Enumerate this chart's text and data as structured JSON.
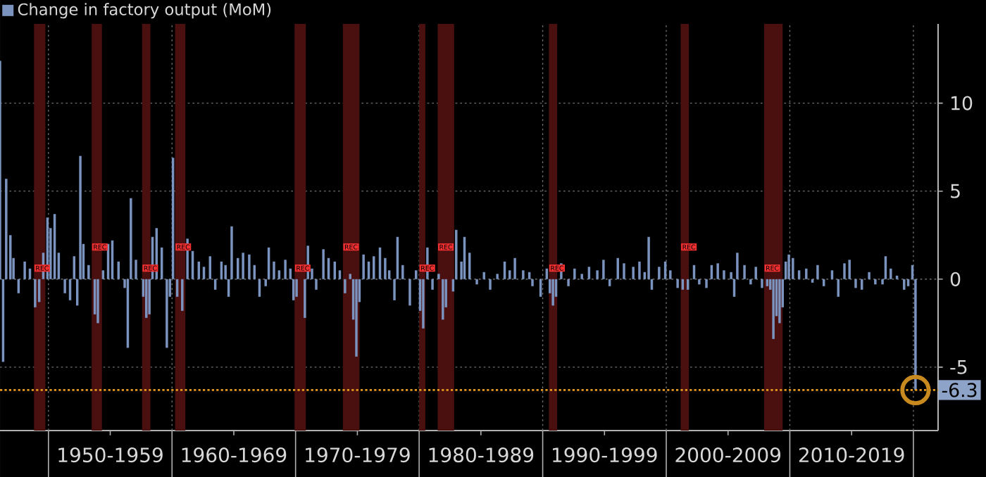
{
  "chart_data": {
    "type": "bar",
    "xlim": [
      "1946-02",
      "2022-01"
    ],
    "ylim": [
      -8.6,
      14.5
    ],
    "xticks": [
      {
        "value": "1950-01",
        "label": null
      },
      {
        "value": "1955-01",
        "label": "1950-1959"
      },
      {
        "value": "1960-01",
        "label": null
      },
      {
        "value": "1965-01",
        "label": "1960-1969"
      },
      {
        "value": "1970-01",
        "label": null
      },
      {
        "value": "1975-01",
        "label": "1970-1979"
      },
      {
        "value": "1980-01",
        "label": null
      },
      {
        "value": "1985-01",
        "label": "1980-1989"
      },
      {
        "value": "1990-01",
        "label": null
      },
      {
        "value": "1995-01",
        "label": "1990-1999"
      },
      {
        "value": "2000-01",
        "label": null
      },
      {
        "value": "2005-01",
        "label": "2000-2009"
      },
      {
        "value": "2010-01",
        "label": null
      },
      {
        "value": "2015-01",
        "label": "2010-2019"
      },
      {
        "value": "2020-01",
        "label": null
      }
    ],
    "yticks": [
      -5,
      0,
      5,
      10
    ],
    "grid": true,
    "legend": "top left",
    "series": [
      {
        "type": "scatter",
        "color": "#c8891e",
        "marker": "circle",
        "x": [
          "2020-03"
        ],
        "values": [
          -6.3
        ]
      },
      {
        "name": "Change in factory output (MoM)",
        "color": "#7b93bf",
        "x": [
          "1946-02",
          "1946-05",
          "1946-08",
          "1946-12",
          "1947-03",
          "1947-08",
          "1948-02",
          "1948-07",
          "1948-12",
          "1949-04",
          "1949-08",
          "1949-12",
          "1950-03",
          "1950-07",
          "1950-11",
          "1951-05",
          "1951-10",
          "1952-02",
          "1952-05",
          "1952-08",
          "1952-11",
          "1953-04",
          "1953-10",
          "1954-01",
          "1954-06",
          "1954-11",
          "1955-03",
          "1955-09",
          "1956-03",
          "1956-06",
          "1956-09",
          "1957-02",
          "1957-09",
          "1957-12",
          "1958-03",
          "1958-06",
          "1958-10",
          "1959-03",
          "1959-08",
          "1959-11",
          "1960-02",
          "1960-06",
          "1960-11",
          "1961-04",
          "1961-09",
          "1962-03",
          "1962-08",
          "1963-02",
          "1963-07",
          "1964-01",
          "1964-05",
          "1964-08",
          "1964-11",
          "1965-05",
          "1965-10",
          "1966-04",
          "1966-09",
          "1967-02",
          "1967-08",
          "1967-11",
          "1968-04",
          "1968-09",
          "1969-03",
          "1969-08",
          "1969-11",
          "1970-02",
          "1970-10",
          "1971-01",
          "1971-05",
          "1971-09",
          "1972-04",
          "1972-09",
          "1973-03",
          "1973-08",
          "1974-01",
          "1974-06",
          "1974-09",
          "1974-12",
          "1975-03",
          "1975-07",
          "1975-12",
          "1976-05",
          "1976-11",
          "1977-04",
          "1977-08",
          "1978-01",
          "1978-04",
          "1978-09",
          "1979-04",
          "1979-10",
          "1980-02",
          "1980-05",
          "1980-09",
          "1981-02",
          "1981-08",
          "1981-12",
          "1982-03",
          "1982-10",
          "1983-01",
          "1983-06",
          "1983-09",
          "1984-02",
          "1984-09",
          "1985-04",
          "1985-10",
          "1986-05",
          "1986-12",
          "1987-05",
          "1987-10",
          "1988-06",
          "1988-12",
          "1989-03",
          "1989-11",
          "1990-05",
          "1990-08",
          "1990-11",
          "1991-02",
          "1991-07",
          "1992-02",
          "1992-08",
          "1993-03",
          "1993-10",
          "1994-06",
          "1994-12",
          "1995-06",
          "1996-02",
          "1996-08",
          "1997-05",
          "1997-11",
          "1998-04",
          "1998-08",
          "1998-11",
          "1999-06",
          "1999-12",
          "2000-05",
          "2000-12",
          "2001-05",
          "2001-10",
          "2002-04",
          "2002-09",
          "2003-04",
          "2003-09",
          "2004-03",
          "2004-09",
          "2005-04",
          "2005-07",
          "2005-10",
          "2006-05",
          "2006-11",
          "2007-04",
          "2007-10",
          "2008-03",
          "2008-06",
          "2008-09",
          "2008-12",
          "2009-03",
          "2009-06",
          "2009-09",
          "2009-12",
          "2010-04",
          "2010-10",
          "2011-05",
          "2011-11",
          "2012-04",
          "2012-10",
          "2013-06",
          "2013-12",
          "2014-06",
          "2014-11",
          "2015-05",
          "2015-11",
          "2016-06",
          "2016-12",
          "2017-07",
          "2017-10",
          "2018-03",
          "2018-09",
          "2019-04",
          "2019-08",
          "2019-12",
          "2020-03"
        ],
        "values": [
          12.4,
          -4.7,
          5.7,
          2.5,
          1.2,
          -0.8,
          1.0,
          0.6,
          -1.6,
          -1.3,
          1.5,
          3.5,
          2.9,
          3.7,
          1.5,
          -0.8,
          -1.2,
          1.3,
          -1.5,
          7.0,
          2.0,
          0.8,
          -2.0,
          -2.5,
          0.5,
          2.0,
          2.2,
          1.0,
          -0.5,
          -3.9,
          4.6,
          1.1,
          -1.0,
          -2.2,
          -2.0,
          2.4,
          2.9,
          1.8,
          -3.9,
          -1.0,
          6.9,
          -1.0,
          -1.8,
          2.3,
          1.6,
          1.0,
          0.7,
          1.3,
          -0.6,
          1.0,
          0.8,
          -1.0,
          3.0,
          1.2,
          1.5,
          1.4,
          0.8,
          -1.0,
          -0.4,
          1.8,
          1.0,
          0.5,
          1.1,
          0.6,
          -1.2,
          -1.0,
          -2.2,
          1.9,
          0.6,
          -0.6,
          1.7,
          1.2,
          1.0,
          0.5,
          -0.8,
          0.3,
          -2.3,
          -4.4,
          -1.3,
          1.4,
          1.0,
          1.3,
          1.8,
          1.2,
          0.5,
          -1.2,
          2.4,
          0.8,
          -1.5,
          0.5,
          -1.8,
          -2.8,
          1.8,
          -0.6,
          0.3,
          -2.3,
          -1.6,
          -0.7,
          2.8,
          1.0,
          2.4,
          1.5,
          -0.3,
          0.4,
          -0.6,
          0.3,
          1.0,
          0.5,
          1.2,
          0.5,
          0.4,
          -0.4,
          -1.0,
          0.6,
          -0.8,
          -1.5,
          -1.0,
          0.9,
          -0.4,
          0.6,
          0.3,
          0.7,
          0.5,
          1.1,
          -0.4,
          1.2,
          0.9,
          0.7,
          1.0,
          0.4,
          2.4,
          -0.6,
          0.7,
          1.0,
          0.5,
          -0.5,
          -0.6,
          -0.6,
          0.8,
          -0.3,
          -0.5,
          0.8,
          0.9,
          0.5,
          0.4,
          -1.0,
          1.5,
          0.8,
          -0.3,
          0.7,
          -0.5,
          -0.4,
          -0.6,
          -3.4,
          -2.1,
          -2.5,
          -1.6,
          1.0,
          1.4,
          1.2,
          0.5,
          0.6,
          -0.2,
          0.8,
          -0.4,
          0.5,
          -1.0,
          0.9,
          1.1,
          -0.5,
          -0.6,
          0.4,
          -0.3,
          -0.3,
          1.3,
          0.6,
          0.2,
          -0.6,
          -0.4,
          0.8,
          -6.3
        ]
      }
    ],
    "bands": [
      {
        "axis": "x",
        "from": "1948-11",
        "to": "1949-10",
        "label": "REC",
        "color": "#4a1010"
      },
      {
        "axis": "x",
        "from": "1953-07",
        "to": "1954-05",
        "label": "REC",
        "color": "#4a1010"
      },
      {
        "axis": "x",
        "from": "1957-08",
        "to": "1958-04",
        "label": "REC",
        "color": "#4a1010"
      },
      {
        "axis": "x",
        "from": "1960-04",
        "to": "1961-02",
        "label": "REC",
        "color": "#4a1010"
      },
      {
        "axis": "x",
        "from": "1969-12",
        "to": "1970-11",
        "label": "REC",
        "color": "#4a1010"
      },
      {
        "axis": "x",
        "from": "1973-11",
        "to": "1975-03",
        "label": "REC",
        "color": "#4a1010"
      },
      {
        "axis": "x",
        "from": "1980-01",
        "to": "1980-07",
        "label": "REC",
        "color": "#4a1010"
      },
      {
        "axis": "x",
        "from": "1981-07",
        "to": "1982-11",
        "label": "REC",
        "color": "#4a1010"
      },
      {
        "axis": "x",
        "from": "1990-07",
        "to": "1991-03",
        "label": "REC",
        "color": "#4a1010"
      },
      {
        "axis": "x",
        "from": "2001-03",
        "to": "2001-11",
        "label": "REC",
        "color": "#4a1010"
      },
      {
        "axis": "x",
        "from": "2007-12",
        "to": "2009-06",
        "label": "REC",
        "color": "#4a1010"
      }
    ],
    "ref_lines": [
      {
        "axis": "y",
        "value": -6.3,
        "label": "-6.3",
        "color": "#e69a1c",
        "line_style": "dotted"
      }
    ]
  }
}
